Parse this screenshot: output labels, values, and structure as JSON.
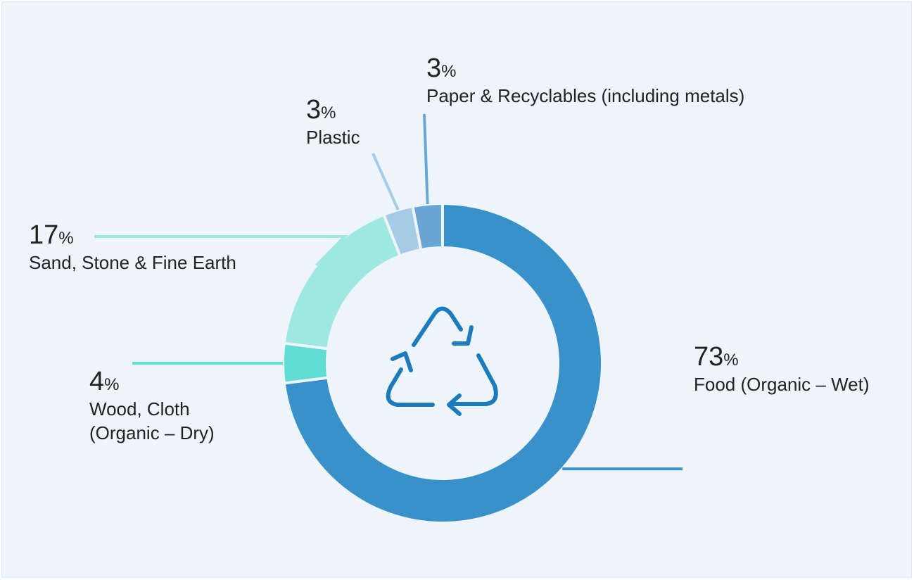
{
  "chart_data": {
    "type": "pie",
    "style": "donut",
    "categories": [
      "Food (Organic – Wet)",
      "Wood, Cloth (Organic – Dry)",
      "Sand, Stone & Fine Earth",
      "Plastic",
      "Paper & Recyclables (including metals)"
    ],
    "values": [
      73,
      4,
      17,
      3,
      3
    ],
    "unit": "%",
    "colors": [
      "#3891c9",
      "#62ddd3",
      "#9fe8e2",
      "#a6cbe6",
      "#6aa6d4"
    ],
    "center_icon": "recycle-icon",
    "labels": [
      {
        "value": "73",
        "unit": "%",
        "name": "Food (Organic – Wet)"
      },
      {
        "value": "4",
        "unit": "%",
        "name": "Wood, Cloth\n(Organic – Dry)"
      },
      {
        "value": "17",
        "unit": "%",
        "name": "Sand, Stone & Fine Earth"
      },
      {
        "value": "3",
        "unit": "%",
        "name": "Plastic"
      },
      {
        "value": "3",
        "unit": "%",
        "name": "Paper & Recyclables (including metals)"
      }
    ]
  }
}
